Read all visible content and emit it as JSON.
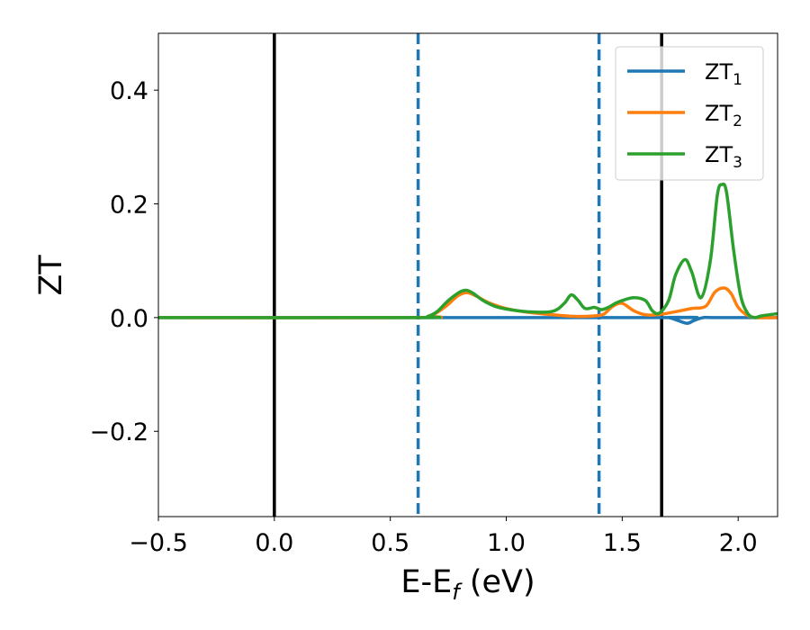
{
  "chart_data": {
    "type": "line",
    "xlabel_main": "E-E",
    "xlabel_sub": "f",
    "xlabel_unit": " (eV)",
    "ylabel": "ZT",
    "xlim": [
      -0.5,
      2.17
    ],
    "ylim": [
      -0.35,
      0.5
    ],
    "xticks": [
      -0.5,
      0.0,
      0.5,
      1.0,
      1.5,
      2.0
    ],
    "xtick_labels": [
      "−0.5",
      "0.0",
      "0.5",
      "1.0",
      "1.5",
      "2.0"
    ],
    "yticks": [
      -0.2,
      0.0,
      0.2,
      0.4
    ],
    "ytick_labels": [
      "−0.2",
      "0.0",
      "0.2",
      "0.4"
    ],
    "grid": false,
    "legend_position": "top-right",
    "vlines": [
      {
        "x": 0.0,
        "style": "solid",
        "color": "#000000"
      },
      {
        "x": 1.67,
        "style": "solid",
        "color": "#000000"
      },
      {
        "x": 0.62,
        "style": "dashed",
        "color": "#1f77b4"
      },
      {
        "x": 1.4,
        "style": "dashed",
        "color": "#1f77b4"
      }
    ],
    "series": [
      {
        "name": "ZT",
        "name_sub": "1",
        "color": "#1f77b4",
        "x": [
          -0.5,
          1.65,
          1.7,
          1.74,
          1.78,
          1.81,
          1.85,
          1.9,
          2.17
        ],
        "y": [
          0.0,
          0.0,
          0.0,
          -0.005,
          -0.01,
          -0.005,
          0.0,
          0.0,
          0.0
        ]
      },
      {
        "name": "ZT",
        "name_sub": "2",
        "color": "#ff7f0e",
        "x": [
          -0.5,
          0.62,
          0.68,
          0.74,
          0.79,
          0.83,
          0.87,
          0.92,
          1.0,
          1.1,
          1.2,
          1.3,
          1.38,
          1.42,
          1.46,
          1.5,
          1.55,
          1.6,
          1.65,
          1.7,
          1.75,
          1.8,
          1.86,
          1.9,
          1.94,
          1.97,
          2.0,
          2.04,
          2.08,
          2.17
        ],
        "y": [
          0.0,
          0.0,
          0.004,
          0.02,
          0.038,
          0.044,
          0.038,
          0.027,
          0.016,
          0.009,
          0.005,
          0.002,
          0.003,
          0.006,
          0.02,
          0.025,
          0.012,
          0.005,
          0.005,
          0.008,
          0.012,
          0.016,
          0.02,
          0.045,
          0.052,
          0.042,
          0.018,
          0.004,
          0.0,
          0.0
        ]
      },
      {
        "name": "ZT",
        "name_sub": "3",
        "color": "#2ca02c",
        "x": [
          -0.5,
          0.62,
          0.66,
          0.7,
          0.75,
          0.8,
          0.83,
          0.86,
          0.9,
          0.95,
          1.0,
          1.1,
          1.2,
          1.25,
          1.28,
          1.31,
          1.34,
          1.38,
          1.41,
          1.44,
          1.47,
          1.5,
          1.55,
          1.6,
          1.63,
          1.66,
          1.7,
          1.73,
          1.77,
          1.8,
          1.84,
          1.88,
          1.91,
          1.93,
          1.95,
          1.98,
          2.01,
          2.04,
          2.07,
          2.1,
          2.17
        ],
        "y": [
          0.0,
          0.0,
          0.002,
          0.01,
          0.03,
          0.045,
          0.048,
          0.042,
          0.03,
          0.02,
          0.015,
          0.01,
          0.011,
          0.025,
          0.04,
          0.03,
          0.016,
          0.018,
          0.014,
          0.018,
          0.025,
          0.03,
          0.035,
          0.03,
          0.012,
          0.008,
          0.03,
          0.075,
          0.102,
          0.08,
          0.035,
          0.1,
          0.215,
          0.234,
          0.22,
          0.12,
          0.04,
          0.008,
          0.0,
          0.003,
          0.007
        ]
      }
    ]
  }
}
